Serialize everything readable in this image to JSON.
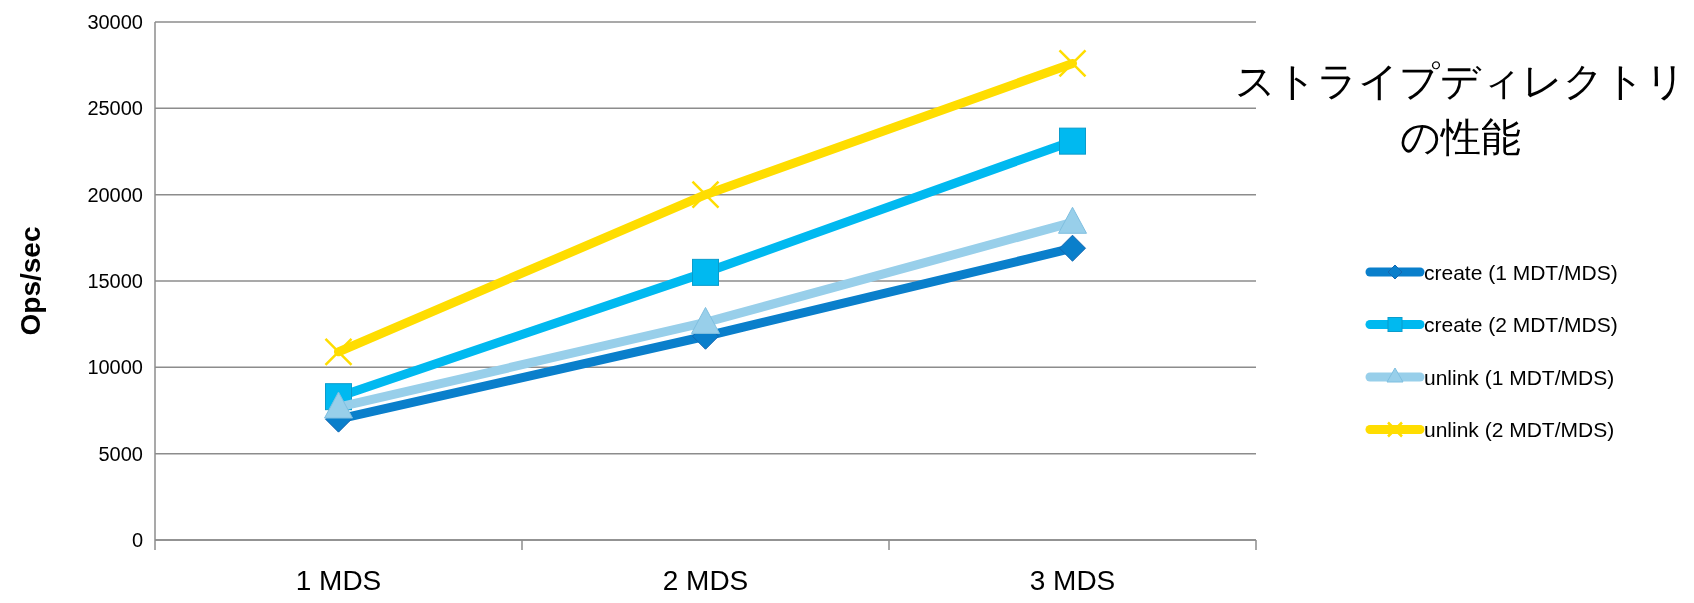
{
  "chart_data": {
    "type": "line",
    "title": "ストライプディレクトリの性能",
    "ylabel": "Ops/sec",
    "categories": [
      "1 MDS",
      "2 MDS",
      "3 MDS"
    ],
    "ylim": [
      0,
      30000
    ],
    "yticks": [
      0,
      5000,
      10000,
      15000,
      20000,
      25000,
      30000
    ],
    "grid": "y",
    "legend": "right",
    "line_style": "solid",
    "series": [
      {
        "name": "create (1 MDT/MDS)",
        "color": "#0a7fcb",
        "marker": "diamond",
        "values": [
          7000,
          11800,
          16900
        ]
      },
      {
        "name": "create (2 MDT/MDS)",
        "color": "#00b9f0",
        "marker": "square",
        "values": [
          8300,
          15500,
          23100
        ]
      },
      {
        "name": "unlink (1 MDT/MDS)",
        "color": "#98cfea",
        "marker": "triangle",
        "values": [
          7700,
          12600,
          18400
        ]
      },
      {
        "name": "unlink (2 MDT/MDS)",
        "color": "#ffdd00",
        "marker": "cross",
        "values": [
          10900,
          20000,
          27600
        ]
      }
    ]
  }
}
